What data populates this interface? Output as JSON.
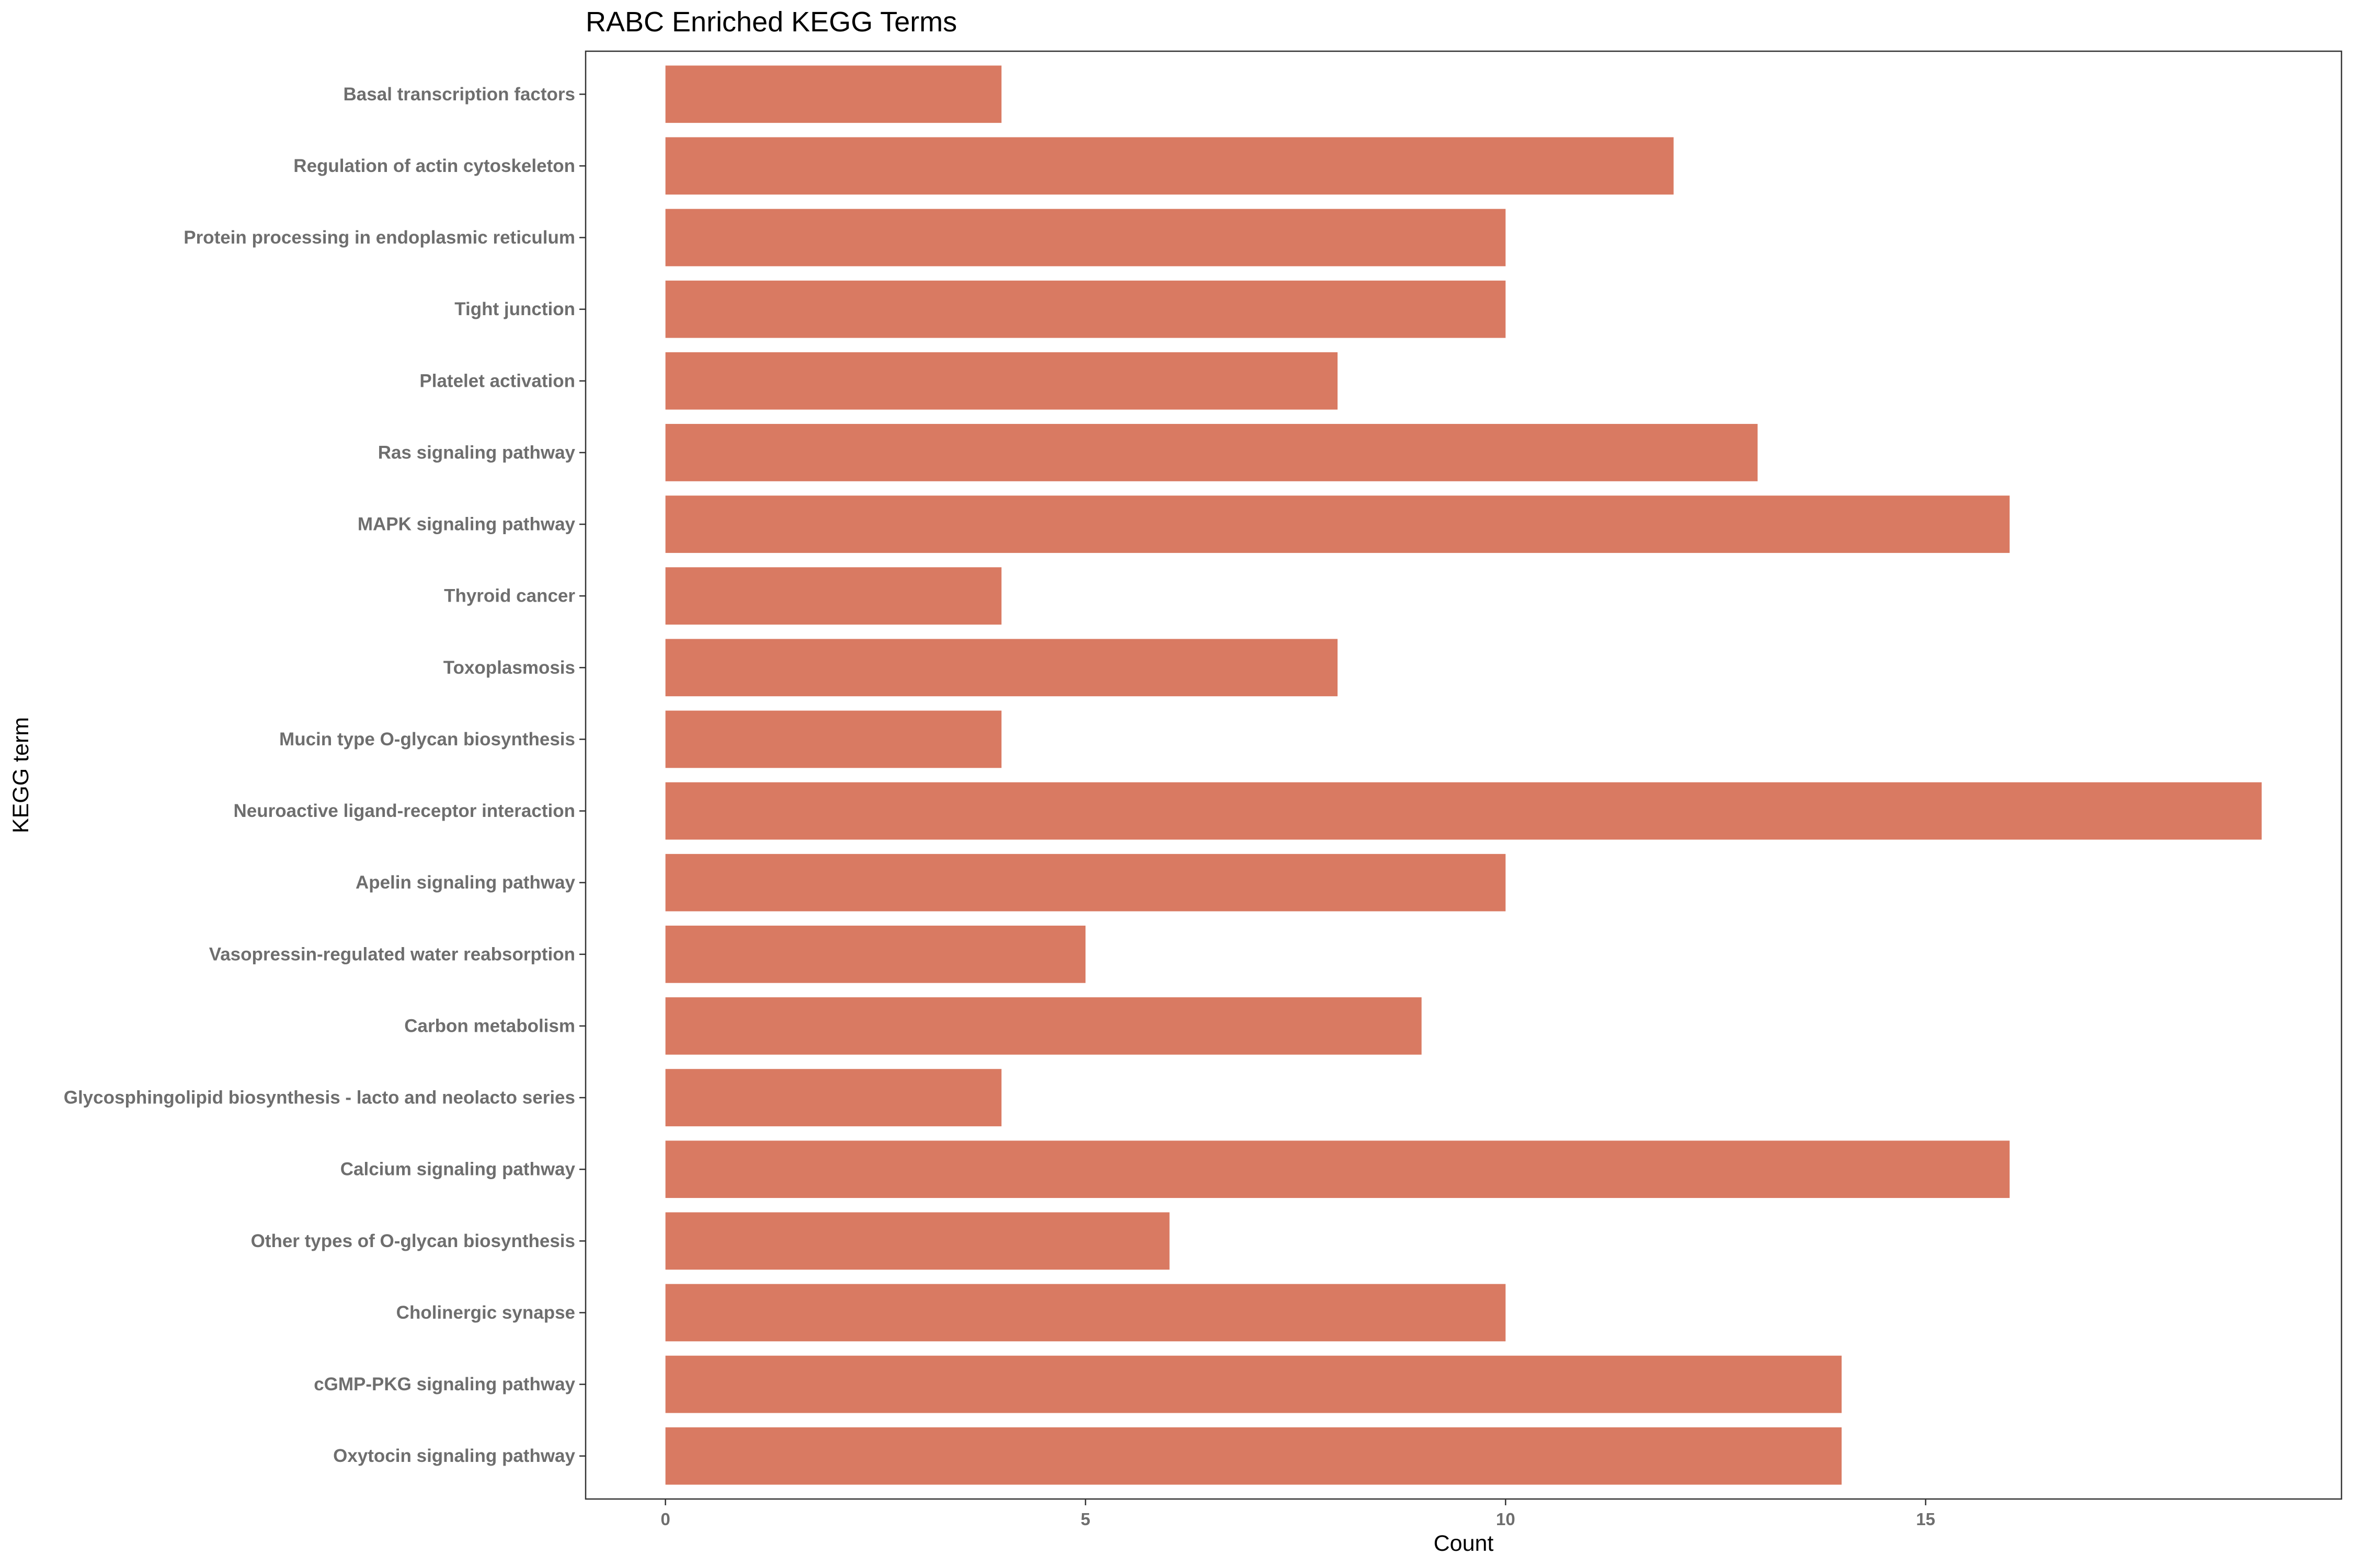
{
  "chart_data": {
    "type": "bar",
    "orientation": "horizontal",
    "title": "RABC Enriched KEGG Terms",
    "xlabel": "Count",
    "ylabel": "KEGG term",
    "xlim": [
      -0.95,
      19.95
    ],
    "xticks": [
      "0",
      "5",
      "10",
      "15"
    ],
    "grid": false,
    "legend": "none",
    "bar_color": "#D97A62",
    "axis_color": "#333333",
    "tick_label_color": "#6E6E6E",
    "categories": [
      "Basal transcription factors",
      "Regulation of actin cytoskeleton",
      "Protein processing in endoplasmic reticulum",
      "Tight junction",
      "Platelet activation",
      "Ras signaling pathway",
      "MAPK signaling pathway",
      "Thyroid cancer",
      "Toxoplasmosis",
      "Mucin type O-glycan biosynthesis",
      "Neuroactive ligand-receptor interaction",
      "Apelin signaling pathway",
      "Vasopressin-regulated water reabsorption",
      "Carbon metabolism",
      "Glycosphingolipid biosynthesis - lacto and neolacto series",
      "Calcium signaling pathway",
      "Other types of O-glycan biosynthesis",
      "Cholinergic synapse",
      "cGMP-PKG signaling pathway",
      "Oxytocin signaling pathway"
    ],
    "values": [
      4,
      12,
      10,
      10,
      8,
      13,
      16,
      4,
      8,
      4,
      19,
      10,
      5,
      9,
      4,
      16,
      6,
      10,
      14,
      14
    ]
  }
}
